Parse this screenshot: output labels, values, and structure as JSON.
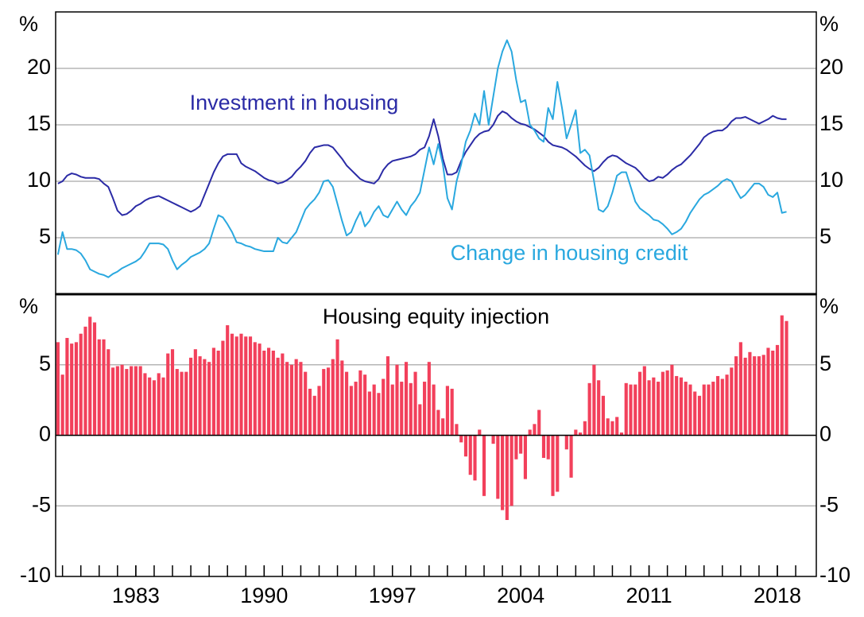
{
  "chart_data": [
    {
      "type": "line",
      "y_label": "%",
      "xlim": [
        1978.625,
        2020.125
      ],
      "ylim": [
        0,
        25
      ],
      "yticks": [
        5,
        10,
        15,
        20
      ],
      "grid": true,
      "x": [
        1978.75,
        1979,
        1979.25,
        1979.5,
        1979.75,
        1980,
        1980.25,
        1980.5,
        1980.75,
        1981,
        1981.25,
        1981.5,
        1981.75,
        1982,
        1982.25,
        1982.5,
        1982.75,
        1983,
        1983.25,
        1983.5,
        1983.75,
        1984,
        1984.25,
        1984.5,
        1984.75,
        1985,
        1985.25,
        1985.5,
        1985.75,
        1986,
        1986.25,
        1986.5,
        1986.75,
        1987,
        1987.25,
        1987.5,
        1987.75,
        1988,
        1988.25,
        1988.5,
        1988.75,
        1989,
        1989.25,
        1989.5,
        1989.75,
        1990,
        1990.25,
        1990.5,
        1990.75,
        1991,
        1991.25,
        1991.5,
        1991.75,
        1992,
        1992.25,
        1992.5,
        1992.75,
        1993,
        1993.25,
        1993.5,
        1993.75,
        1994,
        1994.25,
        1994.5,
        1994.75,
        1995,
        1995.25,
        1995.5,
        1995.75,
        1996,
        1996.25,
        1996.5,
        1996.75,
        1997,
        1997.25,
        1997.5,
        1997.75,
        1998,
        1998.25,
        1998.5,
        1998.75,
        1999,
        1999.25,
        1999.5,
        1999.75,
        2000,
        2000.25,
        2000.5,
        2000.75,
        2001,
        2001.25,
        2001.5,
        2001.75,
        2002,
        2002.25,
        2002.5,
        2002.75,
        2003,
        2003.25,
        2003.5,
        2003.75,
        2004,
        2004.25,
        2004.5,
        2004.75,
        2005,
        2005.25,
        2005.5,
        2005.75,
        2006,
        2006.25,
        2006.5,
        2006.75,
        2007,
        2007.25,
        2007.5,
        2007.75,
        2008,
        2008.25,
        2008.5,
        2008.75,
        2009,
        2009.25,
        2009.5,
        2009.75,
        2010,
        2010.25,
        2010.5,
        2010.75,
        2011,
        2011.25,
        2011.5,
        2011.75,
        2012,
        2012.25,
        2012.5,
        2012.75,
        2013,
        2013.25,
        2013.5,
        2013.75,
        2014,
        2014.25,
        2014.5,
        2014.75,
        2015,
        2015.25,
        2015.5,
        2015.75,
        2016,
        2016.25,
        2016.5,
        2016.75,
        2017,
        2017.25,
        2017.5,
        2017.75,
        2018,
        2018.25,
        2018.5
      ],
      "series": [
        {
          "name": "Investment in housing",
          "color": "#2b2ba6",
          "values": [
            9.8,
            10.0,
            10.5,
            10.7,
            10.6,
            10.4,
            10.3,
            10.3,
            10.3,
            10.2,
            9.8,
            9.5,
            8.5,
            7.4,
            7.0,
            7.1,
            7.4,
            7.8,
            8.0,
            8.3,
            8.5,
            8.6,
            8.7,
            8.5,
            8.3,
            8.1,
            7.9,
            7.7,
            7.5,
            7.3,
            7.5,
            7.8,
            8.8,
            9.8,
            10.8,
            11.6,
            12.2,
            12.4,
            12.4,
            12.4,
            11.6,
            11.3,
            11.1,
            10.9,
            10.6,
            10.3,
            10.1,
            10.0,
            9.8,
            9.9,
            10.1,
            10.4,
            10.9,
            11.3,
            11.8,
            12.5,
            13.0,
            13.1,
            13.2,
            13.2,
            13.0,
            12.5,
            12.0,
            11.4,
            11.0,
            10.6,
            10.2,
            10.0,
            9.9,
            9.8,
            10.2,
            11.0,
            11.5,
            11.8,
            11.9,
            12.0,
            12.1,
            12.2,
            12.4,
            12.8,
            13.0,
            14.0,
            15.5,
            14.0,
            12.0,
            10.6,
            10.6,
            10.8,
            11.8,
            12.6,
            13.2,
            13.8,
            14.2,
            14.4,
            14.5,
            15.0,
            15.8,
            16.2,
            16.0,
            15.6,
            15.3,
            15.1,
            15.0,
            14.8,
            14.6,
            14.3,
            14.0,
            13.5,
            13.2,
            13.1,
            13.0,
            12.8,
            12.5,
            12.2,
            11.8,
            11.4,
            11.1,
            10.9,
            11.2,
            11.7,
            12.1,
            12.3,
            12.2,
            11.9,
            11.6,
            11.4,
            11.2,
            10.8,
            10.3,
            10.0,
            10.1,
            10.4,
            10.3,
            10.6,
            11.0,
            11.3,
            11.5,
            11.9,
            12.3,
            12.8,
            13.3,
            13.9,
            14.2,
            14.4,
            14.5,
            14.5,
            14.8,
            15.3,
            15.6,
            15.6,
            15.7,
            15.5,
            15.3,
            15.1,
            15.3,
            15.5,
            15.8,
            15.6,
            15.5,
            15.5
          ]
        },
        {
          "name": "Change in housing credit",
          "color": "#2aa8df",
          "values": [
            3.5,
            5.5,
            4.0,
            4.0,
            3.9,
            3.6,
            3.0,
            2.2,
            2.0,
            1.8,
            1.7,
            1.5,
            1.8,
            2.0,
            2.3,
            2.5,
            2.7,
            2.9,
            3.2,
            3.8,
            4.5,
            4.5,
            4.5,
            4.4,
            4.0,
            3.0,
            2.2,
            2.6,
            2.9,
            3.3,
            3.5,
            3.7,
            4.0,
            4.5,
            5.8,
            7.0,
            6.8,
            6.2,
            5.5,
            4.6,
            4.5,
            4.3,
            4.2,
            4.0,
            3.9,
            3.8,
            3.8,
            3.8,
            5.0,
            4.6,
            4.5,
            5.0,
            5.5,
            6.5,
            7.5,
            8.0,
            8.4,
            9.0,
            10.0,
            10.1,
            9.5,
            8.0,
            6.5,
            5.2,
            5.5,
            6.5,
            7.3,
            6.0,
            6.5,
            7.3,
            7.8,
            7.0,
            6.8,
            7.5,
            8.2,
            7.5,
            7.0,
            7.8,
            8.3,
            9.0,
            11.0,
            13.0,
            11.5,
            13.3,
            11.5,
            8.5,
            7.5,
            10.0,
            11.5,
            13.5,
            14.5,
            16.0,
            15.0,
            18.0,
            15.0,
            17.5,
            20.0,
            21.5,
            22.5,
            21.5,
            19.0,
            17.0,
            17.2,
            15.0,
            14.5,
            13.8,
            13.5,
            16.5,
            15.5,
            18.8,
            16.5,
            13.8,
            15.0,
            16.3,
            12.5,
            12.8,
            12.3,
            10.0,
            7.5,
            7.3,
            7.8,
            9.0,
            10.5,
            10.8,
            10.8,
            9.5,
            8.2,
            7.6,
            7.3,
            7.0,
            6.6,
            6.5,
            6.2,
            5.8,
            5.3,
            5.5,
            5.8,
            6.4,
            7.2,
            7.8,
            8.4,
            8.8,
            9.0,
            9.3,
            9.6,
            10.0,
            10.2,
            10.0,
            9.2,
            8.5,
            8.8,
            9.3,
            9.8,
            9.8,
            9.5,
            8.8,
            8.6,
            9.0,
            7.2,
            7.3
          ]
        }
      ]
    },
    {
      "type": "bar",
      "title": "Housing equity injection",
      "y_label": "%",
      "color": "#f2405b",
      "xlim": [
        1978.625,
        2020.125
      ],
      "ylim": [
        -10,
        10
      ],
      "yticks": [
        -10,
        -5,
        0,
        5
      ],
      "grid": true,
      "xticks": [
        1983,
        1990,
        1997,
        2004,
        2011,
        2018
      ],
      "xminorticks": [
        1979,
        1980,
        1981,
        1982,
        1983,
        1984,
        1985,
        1986,
        1987,
        1988,
        1989,
        1990,
        1991,
        1992,
        1993,
        1994,
        1995,
        1996,
        1997,
        1998,
        1999,
        2000,
        2001,
        2002,
        2003,
        2004,
        2005,
        2006,
        2007,
        2008,
        2009,
        2010,
        2011,
        2012,
        2013,
        2014,
        2015,
        2016,
        2017,
        2018,
        2019
      ],
      "x": [
        1978.75,
        1979,
        1979.25,
        1979.5,
        1979.75,
        1980,
        1980.25,
        1980.5,
        1980.75,
        1981,
        1981.25,
        1981.5,
        1981.75,
        1982,
        1982.25,
        1982.5,
        1982.75,
        1983,
        1983.25,
        1983.5,
        1983.75,
        1984,
        1984.25,
        1984.5,
        1984.75,
        1985,
        1985.25,
        1985.5,
        1985.75,
        1986,
        1986.25,
        1986.5,
        1986.75,
        1987,
        1987.25,
        1987.5,
        1987.75,
        1988,
        1988.25,
        1988.5,
        1988.75,
        1989,
        1989.25,
        1989.5,
        1989.75,
        1990,
        1990.25,
        1990.5,
        1990.75,
        1991,
        1991.25,
        1991.5,
        1991.75,
        1992,
        1992.25,
        1992.5,
        1992.75,
        1993,
        1993.25,
        1993.5,
        1993.75,
        1994,
        1994.25,
        1994.5,
        1994.75,
        1995,
        1995.25,
        1995.5,
        1995.75,
        1996,
        1996.25,
        1996.5,
        1996.75,
        1997,
        1997.25,
        1997.5,
        1997.75,
        1998,
        1998.25,
        1998.5,
        1998.75,
        1999,
        1999.25,
        1999.5,
        1999.75,
        2000,
        2000.25,
        2000.5,
        2000.75,
        2001,
        2001.25,
        2001.5,
        2001.75,
        2002,
        2002.25,
        2002.5,
        2002.75,
        2003,
        2003.25,
        2003.5,
        2003.75,
        2004,
        2004.25,
        2004.5,
        2004.75,
        2005,
        2005.25,
        2005.5,
        2005.75,
        2006,
        2006.25,
        2006.5,
        2006.75,
        2007,
        2007.25,
        2007.5,
        2007.75,
        2008,
        2008.25,
        2008.5,
        2008.75,
        2009,
        2009.25,
        2009.5,
        2009.75,
        2010,
        2010.25,
        2010.5,
        2010.75,
        2011,
        2011.25,
        2011.5,
        2011.75,
        2012,
        2012.25,
        2012.5,
        2012.75,
        2013,
        2013.25,
        2013.5,
        2013.75,
        2014,
        2014.25,
        2014.5,
        2014.75,
        2015,
        2015.25,
        2015.5,
        2015.75,
        2016,
        2016.25,
        2016.5,
        2016.75,
        2017,
        2017.25,
        2017.5,
        2017.75,
        2018,
        2018.25,
        2018.5
      ],
      "values": [
        6.6,
        4.3,
        6.9,
        6.5,
        6.6,
        7.2,
        7.7,
        8.4,
        8.0,
        6.8,
        6.8,
        6.1,
        4.8,
        4.9,
        5.0,
        4.7,
        4.9,
        4.9,
        4.9,
        4.4,
        4.1,
        3.9,
        4.4,
        4.1,
        5.8,
        6.1,
        4.7,
        4.5,
        4.5,
        5.5,
        6.1,
        5.6,
        5.4,
        5.2,
        6.2,
        6.0,
        6.7,
        7.8,
        7.2,
        7.0,
        7.2,
        7.0,
        7.0,
        6.6,
        6.5,
        6.0,
        6.2,
        6.0,
        5.5,
        5.8,
        5.2,
        5.0,
        5.4,
        5.2,
        4.5,
        3.3,
        2.8,
        3.5,
        4.7,
        4.8,
        5.4,
        6.8,
        5.3,
        4.5,
        3.5,
        3.8,
        4.6,
        4.3,
        3.1,
        3.6,
        3.0,
        4.0,
        5.6,
        3.6,
        5.0,
        3.8,
        5.2,
        3.7,
        4.5,
        2.2,
        3.8,
        5.2,
        3.6,
        1.8,
        1.2,
        3.5,
        3.3,
        0.8,
        -0.5,
        -1.5,
        -2.8,
        -3.2,
        0.4,
        -4.3,
        0.0,
        -0.6,
        -4.5,
        -5.3,
        -6.0,
        -5.0,
        -1.7,
        -1.3,
        -3.1,
        0.4,
        0.8,
        1.8,
        -1.6,
        -1.7,
        -4.3,
        -4.0,
        0.0,
        -1.0,
        -3.0,
        0.4,
        0.2,
        1.0,
        3.7,
        5.0,
        3.9,
        2.8,
        1.2,
        1.0,
        1.3,
        0.2,
        3.7,
        3.6,
        3.6,
        4.5,
        4.9,
        3.9,
        4.1,
        3.8,
        4.5,
        4.6,
        5.0,
        4.2,
        4.1,
        3.8,
        3.6,
        3.1,
        2.8,
        3.6,
        3.6,
        3.8,
        4.2,
        4.0,
        4.3,
        4.8,
        5.6,
        6.6,
        5.5,
        5.9,
        5.6,
        5.6,
        5.7,
        6.2,
        6.0,
        6.4,
        8.5,
        8.1
      ]
    }
  ]
}
